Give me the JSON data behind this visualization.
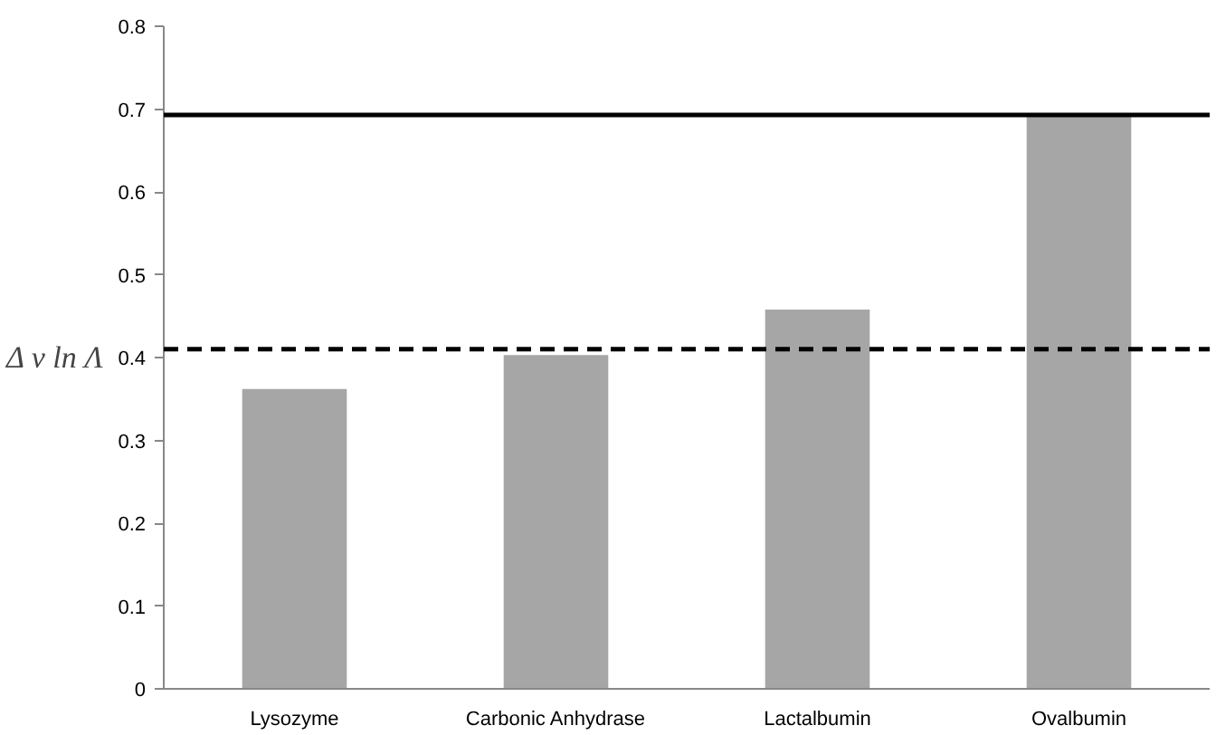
{
  "chart_data": {
    "type": "bar",
    "ylabel": "Δ ν ln Λ",
    "categories": [
      "Lysozyme",
      "Carbonic Anhydrase",
      "Lactalbumin",
      "Ovalbumin"
    ],
    "values": [
      0.362,
      0.403,
      0.458,
      0.692
    ],
    "color": "#a6a6a6",
    "ylim": [
      0,
      0.8
    ],
    "yticks": [
      {
        "value": 0,
        "label": "0"
      },
      0.1,
      0.2,
      0.3,
      0.4,
      0.5,
      0.6,
      0.7,
      0.8
    ],
    "grid": false,
    "ref_lines": [
      {
        "axis": "y",
        "value": 0.693,
        "color": "#000000",
        "line_style": "solid"
      },
      {
        "axis": "y",
        "value": 0.41,
        "color": "#000000",
        "line_style": "dashed"
      }
    ]
  }
}
